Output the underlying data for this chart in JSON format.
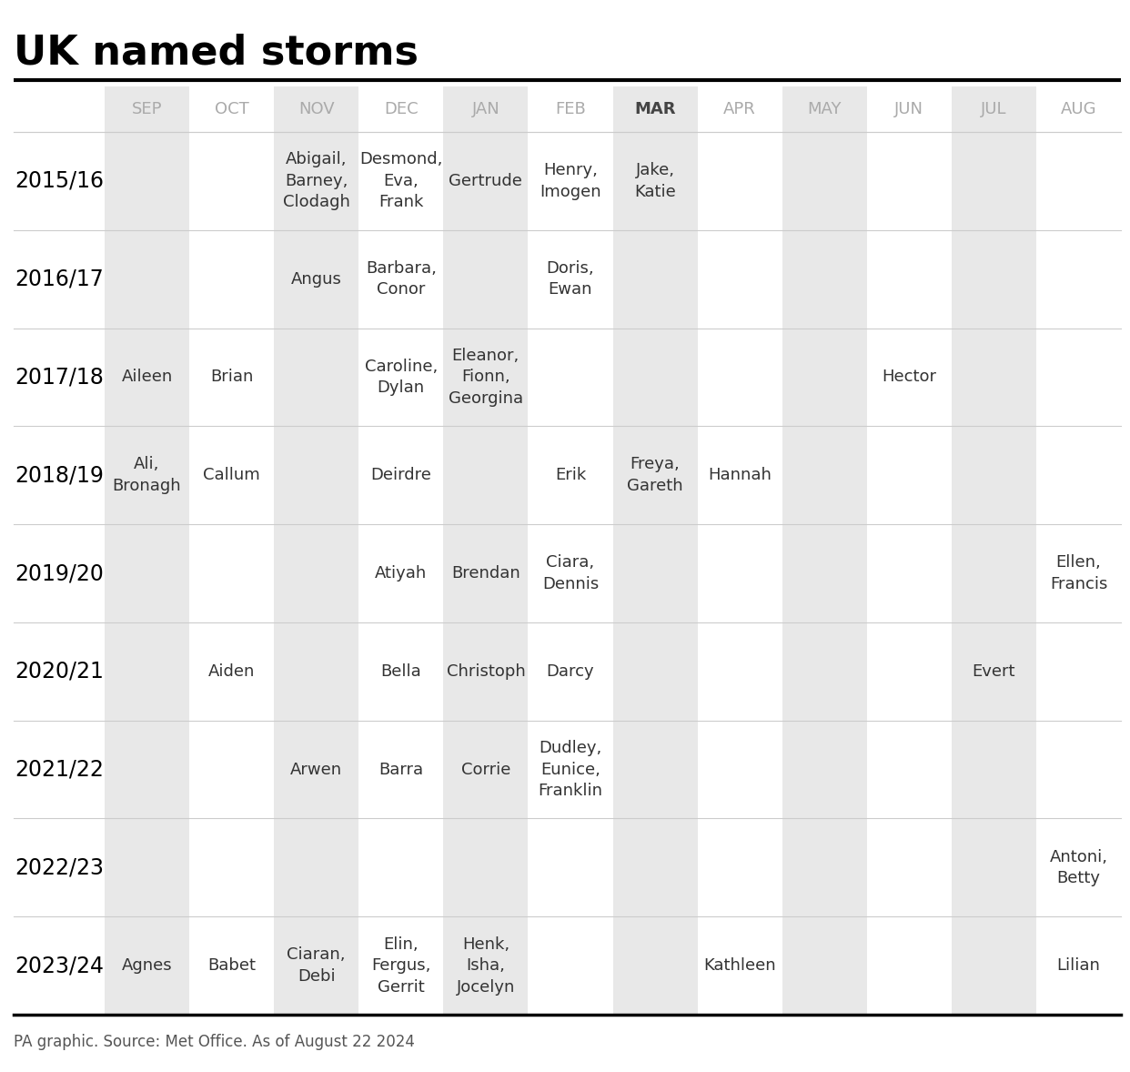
{
  "title": "UK named storms",
  "footer": "PA graphic. Source: Met Office. As of August 22 2024",
  "months": [
    "SEP",
    "OCT",
    "NOV",
    "DEC",
    "JAN",
    "FEB",
    "MAR",
    "APR",
    "MAY",
    "JUN",
    "JUL",
    "AUG"
  ],
  "years": [
    "2015/16",
    "2016/17",
    "2017/18",
    "2018/19",
    "2019/20",
    "2020/21",
    "2021/22",
    "2022/23",
    "2023/24"
  ],
  "cells": {
    "2015/16": {
      "SEP": "",
      "OCT": "",
      "NOV": "Abigail,\nBarney,\nClodagh",
      "DEC": "Desmond,\nEva,\nFrank",
      "JAN": "Gertrude",
      "FEB": "Henry,\nImogen",
      "MAR": "Jake,\nKatie",
      "APR": "",
      "MAY": "",
      "JUN": "",
      "JUL": "",
      "AUG": ""
    },
    "2016/17": {
      "SEP": "",
      "OCT": "",
      "NOV": "Angus",
      "DEC": "Barbara,\nConor",
      "JAN": "",
      "FEB": "Doris,\nEwan",
      "MAR": "",
      "APR": "",
      "MAY": "",
      "JUN": "",
      "JUL": "",
      "AUG": ""
    },
    "2017/18": {
      "SEP": "Aileen",
      "OCT": "Brian",
      "NOV": "",
      "DEC": "Caroline,\nDylan",
      "JAN": "Eleanor,\nFionn,\nGeorgina",
      "FEB": "",
      "MAR": "",
      "APR": "",
      "MAY": "",
      "JUN": "Hector",
      "JUL": "",
      "AUG": ""
    },
    "2018/19": {
      "SEP": "Ali,\nBronagh",
      "OCT": "Callum",
      "NOV": "",
      "DEC": "Deirdre",
      "JAN": "",
      "FEB": "Erik",
      "MAR": "Freya,\nGareth",
      "APR": "Hannah",
      "MAY": "",
      "JUN": "",
      "JUL": "",
      "AUG": ""
    },
    "2019/20": {
      "SEP": "",
      "OCT": "",
      "NOV": "",
      "DEC": "Atiyah",
      "JAN": "Brendan",
      "FEB": "Ciara,\nDennis",
      "MAR": "",
      "APR": "",
      "MAY": "",
      "JUN": "",
      "JUL": "",
      "AUG": "Ellen,\nFrancis"
    },
    "2020/21": {
      "SEP": "",
      "OCT": "Aiden",
      "NOV": "",
      "DEC": "Bella",
      "JAN": "Christoph",
      "FEB": "Darcy",
      "MAR": "",
      "APR": "",
      "MAY": "",
      "JUN": "",
      "JUL": "Evert",
      "AUG": ""
    },
    "2021/22": {
      "SEP": "",
      "OCT": "",
      "NOV": "Arwen",
      "DEC": "Barra",
      "JAN": "Corrie",
      "FEB": "Dudley,\nEunice,\nFranklin",
      "MAR": "",
      "APR": "",
      "MAY": "",
      "JUN": "",
      "JUL": "",
      "AUG": ""
    },
    "2022/23": {
      "SEP": "",
      "OCT": "",
      "NOV": "",
      "DEC": "",
      "JAN": "",
      "FEB": "",
      "MAR": "",
      "APR": "",
      "MAY": "",
      "JUN": "",
      "JUL": "",
      "AUG": "Antoni,\nBetty"
    },
    "2023/24": {
      "SEP": "Agnes",
      "OCT": "Babet",
      "NOV": "Ciaran,\nDebi",
      "DEC": "Elin,\nFergus,\nGerrit",
      "JAN": "Henk,\nIsha,\nJocelyn",
      "FEB": "",
      "MAR": "",
      "APR": "Kathleen",
      "MAY": "",
      "JUN": "",
      "JUL": "",
      "AUG": "Lilian"
    }
  },
  "shaded_months": [
    "SEP",
    "NOV",
    "JAN",
    "MAR",
    "MAY",
    "JUL"
  ],
  "shaded_color": "#e8e8e8",
  "unshaded_color": "#ffffff",
  "mar_color": "#444444",
  "normal_month_color": "#aaaaaa",
  "year_label_color": "#000000",
  "cell_text_color": "#333333",
  "title_color": "#000000",
  "footer_color": "#555555",
  "border_color": "#cccccc",
  "title_fontsize": 32,
  "header_fontsize": 13,
  "year_fontsize": 17,
  "cell_fontsize": 13,
  "footer_fontsize": 12,
  "fig_width": 12.42,
  "fig_height": 11.78,
  "dpi": 100
}
